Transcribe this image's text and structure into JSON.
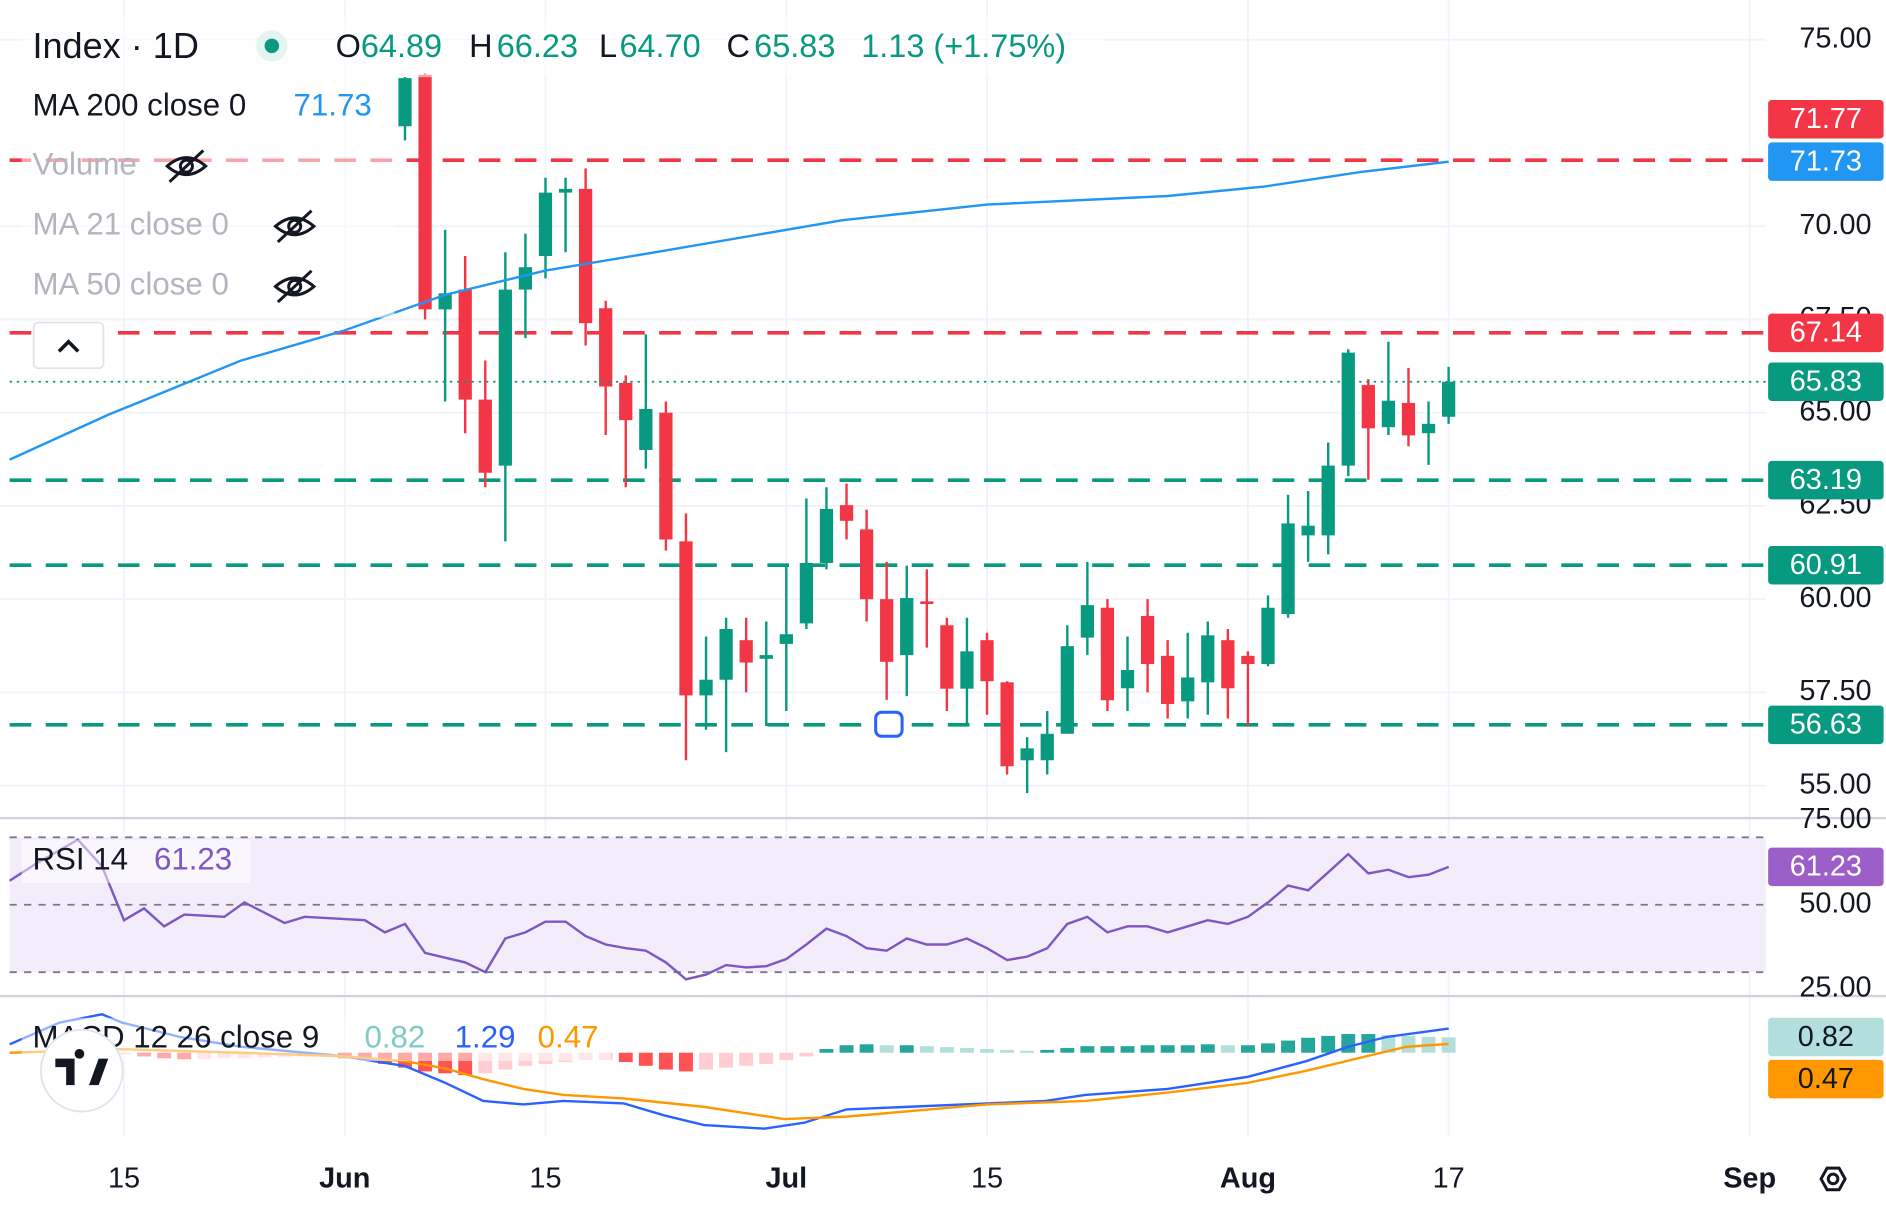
{
  "chart_data": [
    {
      "type": "candlestick",
      "title": "Index · 1D",
      "ohlc_legend": [
        {
          "key": "O",
          "value": "64.89"
        },
        {
          "key": "H",
          "value": "66.23"
        },
        {
          "key": "L",
          "value": "64.70"
        },
        {
          "key": "C",
          "value": "65.83"
        }
      ],
      "change": "1.13 (+1.75%)",
      "open": [
        72.68,
        74.06,
        67.77,
        68.3,
        65.35,
        63.58,
        68.3,
        69.2,
        70.9,
        71.0,
        67.8,
        65.8,
        64.0,
        65.0,
        61.55,
        57.42,
        57.84,
        58.9,
        58.4,
        58.8,
        59.35,
        60.97,
        62.52,
        61.87,
        60.0,
        58.5,
        59.94,
        59.3,
        57.6,
        58.9,
        57.77,
        55.68,
        55.68,
        56.39,
        58.97,
        59.77,
        57.61,
        59.55,
        58.48,
        57.26,
        57.77,
        58.9,
        58.48,
        58.26,
        59.6,
        61.71,
        61.71,
        63.58,
        65.74,
        64.61,
        65.26,
        64.45,
        64.89
      ],
      "high": [
        74.0,
        74.1,
        69.9,
        69.2,
        66.4,
        69.3,
        69.8,
        71.3,
        71.3,
        71.55,
        68.0,
        66.0,
        67.1,
        65.3,
        62.3,
        59.0,
        59.5,
        59.5,
        59.4,
        60.9,
        62.7,
        63.0,
        63.1,
        62.4,
        61.0,
        60.9,
        60.8,
        59.5,
        59.5,
        59.1,
        57.8,
        56.3,
        57.0,
        59.3,
        61.0,
        60.0,
        59.0,
        60.0,
        58.9,
        59.1,
        59.4,
        59.2,
        58.6,
        60.1,
        62.8,
        62.9,
        64.2,
        66.7,
        65.9,
        66.9,
        66.2,
        65.3,
        66.23
      ],
      "low": [
        72.3,
        67.5,
        65.3,
        64.45,
        63.0,
        61.55,
        67.0,
        68.6,
        69.3,
        66.8,
        64.4,
        63.0,
        63.5,
        61.3,
        55.68,
        56.5,
        55.9,
        57.5,
        56.6,
        57.0,
        59.2,
        60.8,
        61.6,
        59.4,
        57.3,
        57.4,
        58.7,
        57.0,
        56.6,
        56.9,
        55.3,
        54.8,
        55.3,
        56.4,
        58.5,
        57.0,
        57.0,
        57.5,
        56.8,
        56.8,
        56.9,
        56.8,
        56.6,
        58.2,
        59.5,
        61.0,
        61.2,
        63.3,
        63.2,
        64.4,
        64.1,
        63.6,
        64.7
      ],
      "close": [
        73.97,
        67.77,
        68.2,
        65.35,
        63.39,
        68.3,
        68.9,
        70.9,
        71.0,
        67.4,
        65.7,
        64.8,
        65.1,
        61.6,
        57.42,
        57.84,
        59.2,
        58.3,
        58.5,
        59.06,
        60.97,
        62.42,
        62.1,
        60.0,
        58.32,
        60.03,
        59.87,
        57.6,
        58.6,
        57.8,
        55.52,
        56.0,
        56.39,
        58.74,
        59.84,
        57.29,
        58.1,
        58.26,
        57.19,
        57.9,
        59.03,
        57.61,
        58.26,
        59.77,
        62.03,
        61.97,
        63.58,
        66.61,
        64.58,
        65.32,
        64.39,
        64.7,
        65.83
      ],
      "up_color": "#089981",
      "down_color": "#f23645",
      "series": [
        {
          "name": "MA 200 close 0",
          "color": "#2196f3",
          "x": [
            -19.7,
            -14.8,
            -8.2,
            -3.1,
            2,
            7,
            13,
            21.8,
            29,
            38,
            42.8,
            47.6,
            52
          ],
          "values": [
            63.74,
            64.94,
            66.39,
            67.19,
            68.16,
            68.81,
            69.35,
            70.16,
            70.58,
            70.81,
            71.06,
            71.45,
            71.73
          ]
        }
      ],
      "hidden_indicators": [
        "Volume",
        "MA 21 close 0",
        "MA 50 close 0"
      ],
      "levels": [
        {
          "value": 71.77,
          "color": "#f23645"
        },
        {
          "value": 67.14,
          "color": "#f23645"
        },
        {
          "value": 63.19,
          "color": "#089981"
        },
        {
          "value": 60.91,
          "color": "#089981"
        },
        {
          "value": 56.63,
          "color": "#089981"
        }
      ],
      "ylim": [
        54.13,
        76.06
      ],
      "yticks": [
        {
          "value": 55,
          "label": "55.00"
        },
        {
          "value": 57.5,
          "label": "57.50"
        },
        {
          "value": 60,
          "label": "60.00"
        },
        {
          "value": 62.5,
          "label": "62.50"
        },
        {
          "value": 65,
          "label": "65.00"
        },
        {
          "value": 67.5,
          "label": "67.50"
        },
        {
          "value": 70,
          "label": "70.00"
        },
        {
          "value": 75,
          "label": "75.00"
        }
      ],
      "xlim": [
        -19.7,
        67.8
      ],
      "xticks": [
        {
          "value": -14,
          "label": "15"
        },
        {
          "value": -3,
          "label": "Jun"
        },
        {
          "value": 7,
          "label": "15"
        },
        {
          "value": 19,
          "label": "Jul"
        },
        {
          "value": 29,
          "label": "15"
        },
        {
          "value": 42,
          "label": "Aug"
        },
        {
          "value": 52,
          "label": "17"
        },
        {
          "value": 67,
          "label": "Sep"
        }
      ],
      "grid": true
    },
    {
      "type": "line",
      "title": "RSI 14",
      "series": [
        {
          "name": "RSI 14",
          "color": "#7e57c2",
          "x": [
            -19.7,
            -18.4,
            -16.3,
            -15.1,
            -14,
            -13,
            -12,
            -11,
            -9,
            -8,
            -6,
            -5,
            -2,
            -1,
            0,
            1,
            3,
            4,
            5,
            6,
            7,
            8,
            9,
            10,
            11,
            12,
            13,
            14,
            15,
            16,
            17,
            18,
            19,
            20,
            21,
            22,
            23,
            24,
            25,
            26,
            27,
            28,
            29,
            30,
            31,
            32,
            33,
            34,
            35,
            36,
            37,
            38,
            39,
            40,
            41,
            42,
            43,
            44,
            45,
            46,
            47,
            48,
            49,
            50,
            51,
            52
          ],
          "values": [
            57.1,
            62.1,
            69.3,
            61.4,
            45.4,
            48.9,
            43.6,
            47.1,
            46.4,
            50.7,
            44.6,
            46.4,
            45.4,
            41.8,
            44.3,
            35.7,
            32.9,
            30.0,
            40.0,
            41.8,
            45.0,
            45.0,
            40.7,
            38.2,
            37.1,
            36.4,
            32.9,
            27.9,
            29.3,
            32.1,
            31.4,
            31.8,
            33.9,
            38.2,
            42.9,
            40.7,
            37.1,
            36.4,
            40.0,
            38.2,
            38.2,
            40.0,
            37.1,
            33.6,
            34.6,
            37.1,
            44.3,
            46.4,
            41.8,
            43.6,
            43.6,
            41.8,
            43.6,
            45.4,
            44.3,
            46.4,
            50.7,
            55.7,
            54.3,
            59.6,
            65.0,
            59.3,
            60.4,
            58.2,
            58.9,
            61.23
          ]
        }
      ],
      "bands": [
        30,
        70
      ],
      "band_color": "#f3ecfa",
      "ylim": [
        22.9,
        75.7
      ],
      "yticks": [
        {
          "value": 25,
          "label": "25.00"
        },
        {
          "value": 50,
          "label": "50.00"
        },
        {
          "value": 75,
          "label": "75.00"
        }
      ]
    },
    {
      "type": "macd",
      "title": "MACD 12 26 close 9",
      "histogram": {
        "x": [
          -14,
          -13,
          -12,
          -11,
          -10,
          -9,
          -8,
          -7,
          -6,
          -5,
          -4,
          -3,
          -2,
          -1,
          0,
          1,
          2,
          3,
          4,
          5,
          6,
          7,
          8,
          9,
          10,
          11,
          12,
          13,
          14,
          15,
          16,
          17,
          18,
          19,
          20,
          21,
          22,
          23,
          24,
          25,
          26,
          27,
          28,
          29,
          30,
          31,
          32,
          33,
          34,
          35,
          36,
          37,
          38,
          39,
          40,
          41,
          42,
          43,
          44,
          45,
          46,
          47,
          48,
          49,
          50,
          51,
          52
        ],
        "values": [
          -0.1,
          -0.2,
          -0.3,
          -0.35,
          -0.35,
          -0.3,
          -0.3,
          -0.25,
          -0.25,
          -0.2,
          -0.2,
          -0.3,
          -0.4,
          -0.6,
          -0.8,
          -1.0,
          -1.1,
          -1.2,
          -1.1,
          -0.9,
          -0.7,
          -0.6,
          -0.5,
          -0.4,
          -0.4,
          -0.5,
          -0.7,
          -0.9,
          -1.0,
          -0.9,
          -0.8,
          -0.7,
          -0.6,
          -0.4,
          -0.2,
          0.2,
          0.4,
          0.45,
          0.4,
          0.4,
          0.35,
          0.3,
          0.25,
          0.2,
          0.15,
          0.1,
          0.15,
          0.25,
          0.35,
          0.35,
          0.35,
          0.4,
          0.4,
          0.4,
          0.45,
          0.4,
          0.4,
          0.5,
          0.65,
          0.8,
          0.9,
          1.0,
          1.0,
          0.95,
          0.9,
          0.85,
          0.82
        ],
        "colors": {
          "grow_above": "#26a69a",
          "fall_above": "#b2dfdb",
          "grow_below": "#ffcdd2",
          "fall_below": "#ff5252"
        }
      },
      "series": [
        {
          "name": "MACD",
          "color": "#2962ff",
          "x": [
            -19.7,
            -17.2,
            -15.1,
            -14.1,
            -11.2,
            -8.2,
            -3.1,
            0,
            2,
            3.9,
            5.9,
            7.9,
            10.9,
            12.9,
            14.9,
            17.9,
            19.9,
            22,
            25,
            29,
            31.9,
            33.9,
            38,
            42,
            44.9,
            47,
            48.9,
            52
          ],
          "values": [
            0.45,
            1.61,
            2.06,
            1.61,
            0.84,
            0.32,
            -0.19,
            -0.71,
            -1.61,
            -2.58,
            -2.77,
            -2.58,
            -2.71,
            -3.35,
            -3.87,
            -4.06,
            -3.74,
            -3.03,
            -2.9,
            -2.71,
            -2.58,
            -2.26,
            -1.94,
            -1.29,
            -0.45,
            0.32,
            0.84,
            1.29
          ]
        },
        {
          "name": "Signal",
          "color": "#ff9800",
          "x": [
            -19.7,
            -14.2,
            -8.2,
            -3.1,
            0,
            2,
            3.9,
            5.9,
            7.9,
            10.9,
            14.9,
            18.9,
            22,
            29,
            33.9,
            38,
            42,
            44.9,
            47.9,
            49.9,
            52
          ],
          "values": [
            0,
            0.19,
            0,
            -0.19,
            -0.45,
            -0.84,
            -1.42,
            -1.94,
            -2.26,
            -2.45,
            -2.9,
            -3.55,
            -3.42,
            -2.77,
            -2.58,
            -2.13,
            -1.61,
            -0.97,
            -0.19,
            0.32,
            0.47
          ]
        }
      ],
      "ylim": [
        -4.5,
        2.9
      ]
    }
  ]
}
